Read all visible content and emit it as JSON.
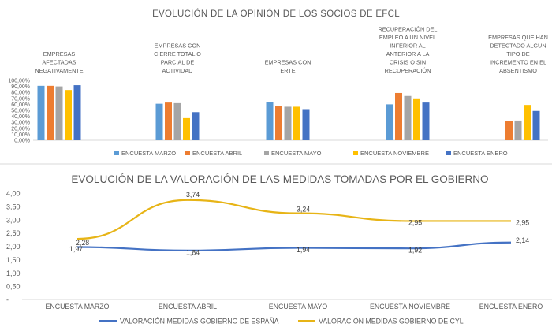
{
  "chart_data": [
    {
      "type": "bar",
      "title": "EVOLUCIÓN DE LA OPINIÓN DE LOS SOCIOS DE EFCL",
      "category_lines": [
        [
          "EMPRESAS",
          "AFECTADAS",
          "NEGATIVAMENTE"
        ],
        [
          "EMPRESAS CON",
          "CIERRE TOTAL O",
          "PARCIAL DE",
          "ACTIVIDAD"
        ],
        [
          "EMPRESAS CON",
          "ERTE"
        ],
        [
          "RECUPERACIÓN DEL",
          "EMPLEO A UN NIVEL",
          "INFERIOR AL",
          "ANTERIOR A LA",
          "CRISIS O SIN",
          "RECUPERACIÓN"
        ],
        [
          "EMPRESAS QUE HAN",
          "DETECTADO ALGÚN",
          "TIPO DE",
          "INCREMENTO EN EL",
          "ABSENTISMO"
        ]
      ],
      "y_ticks": [
        "0,00%",
        "10,00%",
        "20,00%",
        "30,00%",
        "40,00%",
        "50,00%",
        "60,00%",
        "70,00%",
        "80,00%",
        "90,00%",
        "100,00%"
      ],
      "ylim": [
        0,
        100
      ],
      "legend_position": "bottom",
      "series": [
        {
          "name": "ENCUESTA MARZO",
          "color": "#5b9bd5",
          "values": [
            91,
            61,
            64,
            60,
            null
          ]
        },
        {
          "name": "ENCUESTA ABRIL",
          "color": "#ed7d31",
          "values": [
            91,
            63,
            57,
            79,
            32
          ]
        },
        {
          "name": "ENCUESTA MAYO",
          "color": "#a5a5a5",
          "values": [
            90,
            62,
            56,
            74,
            33
          ]
        },
        {
          "name": "ENCUESTA NOVIEMBRE",
          "color": "#ffc000",
          "values": [
            84,
            37,
            56,
            70,
            59
          ]
        },
        {
          "name": "ENCUESTA ENERO",
          "color": "#4472c4",
          "values": [
            92,
            47,
            52,
            63,
            49
          ]
        }
      ]
    },
    {
      "type": "line",
      "title": "EVOLUCIÓN DE LA VALORACIÓN DE LAS MEDIDAS TOMADAS POR EL GOBIERNO",
      "categories": [
        "ENCUESTA MARZO",
        "ENCUESTA ABRIL",
        "ENCUESTA MAYO",
        "ENCUESTA NOVIEMBRE",
        "ENCUESTA ENERO"
      ],
      "y_ticks": [
        "-",
        "0,50",
        "1,00",
        "1,50",
        "2,00",
        "2,50",
        "3,00",
        "3,50",
        "4,00"
      ],
      "ylim": [
        0,
        4
      ],
      "legend_position": "bottom",
      "series": [
        {
          "name": "VALORACIÓN MEDIDAS GOBIERNO DE ESPAÑA",
          "color": "#4472c4",
          "values": [
            1.97,
            1.84,
            1.94,
            1.92,
            2.14
          ],
          "labels": [
            "1,97",
            "1,84",
            "1,94",
            "1,92",
            "2,14"
          ]
        },
        {
          "name": "VALORACIÓN MEDIDAS GOBIERNO DE CYL",
          "color": "#e7b416",
          "values": [
            2.28,
            3.74,
            3.24,
            2.95,
            2.95
          ],
          "labels": [
            "2,28",
            "3,74",
            "3,24",
            "2,95",
            "2,95"
          ]
        }
      ]
    }
  ]
}
